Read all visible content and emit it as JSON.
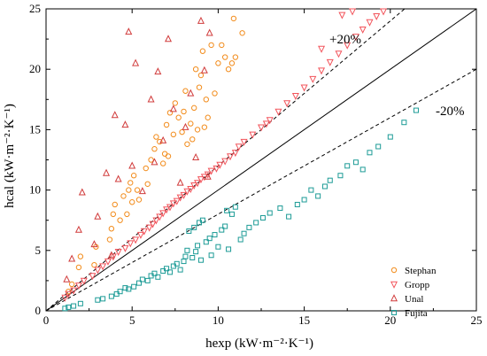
{
  "chart_data": {
    "type": "scatter",
    "title": "",
    "xlabel": "hexp (kW·m⁻²·K⁻¹)",
    "ylabel": "hcal (kW·m⁻²·K⁻¹)",
    "xlim": [
      0,
      25
    ],
    "ylim": [
      0,
      25
    ],
    "xticks": [
      "0",
      "5",
      "10",
      "15",
      "20",
      "25"
    ],
    "yticks": [
      "0",
      "5",
      "10",
      "15",
      "20",
      "25"
    ],
    "grid": false,
    "legend_position": "bottom-right",
    "reference_lines": [
      {
        "label": "",
        "slope": 1.0,
        "style": "solid"
      },
      {
        "label": "+20%",
        "slope": 1.2,
        "style": "dashed"
      },
      {
        "label": "-20%",
        "slope": 0.8,
        "style": "dashed"
      }
    ],
    "series": [
      {
        "name": "Stephan",
        "marker": "circle",
        "color": "#F28C1C",
        "points": [
          [
            1.3,
            1.6
          ],
          [
            1.5,
            2.2
          ],
          [
            1.9,
            3.6
          ],
          [
            2.0,
            4.5
          ],
          [
            2.8,
            3.8
          ],
          [
            2.9,
            5.3
          ],
          [
            3.7,
            5.9
          ],
          [
            3.8,
            6.8
          ],
          [
            3.9,
            8.0
          ],
          [
            4.0,
            8.8
          ],
          [
            4.3,
            7.5
          ],
          [
            4.5,
            9.5
          ],
          [
            4.7,
            8.0
          ],
          [
            4.8,
            10.0
          ],
          [
            4.9,
            10.6
          ],
          [
            5.0,
            9.0
          ],
          [
            5.1,
            11.2
          ],
          [
            5.3,
            10.0
          ],
          [
            5.4,
            9.2
          ],
          [
            5.8,
            11.8
          ],
          [
            5.9,
            10.5
          ],
          [
            6.1,
            12.5
          ],
          [
            6.3,
            13.4
          ],
          [
            6.4,
            14.4
          ],
          [
            6.6,
            14.0
          ],
          [
            6.8,
            12.2
          ],
          [
            6.9,
            13.0
          ],
          [
            7.0,
            15.4
          ],
          [
            7.1,
            12.8
          ],
          [
            7.2,
            16.4
          ],
          [
            7.4,
            14.6
          ],
          [
            7.5,
            17.2
          ],
          [
            7.7,
            16.0
          ],
          [
            7.9,
            14.8
          ],
          [
            8.0,
            16.5
          ],
          [
            8.1,
            18.2
          ],
          [
            8.2,
            13.8
          ],
          [
            8.4,
            15.5
          ],
          [
            8.5,
            14.2
          ],
          [
            8.6,
            16.8
          ],
          [
            8.7,
            20.0
          ],
          [
            8.8,
            15.0
          ],
          [
            8.9,
            18.5
          ],
          [
            9.0,
            19.5
          ],
          [
            9.1,
            21.5
          ],
          [
            9.2,
            15.2
          ],
          [
            9.3,
            17.5
          ],
          [
            9.4,
            16.0
          ],
          [
            9.6,
            22.0
          ],
          [
            9.8,
            18.0
          ],
          [
            10.0,
            20.5
          ],
          [
            10.2,
            22.0
          ],
          [
            10.4,
            21.0
          ],
          [
            10.6,
            20.0
          ],
          [
            10.8,
            20.5
          ],
          [
            10.9,
            24.2
          ],
          [
            11.0,
            21.0
          ],
          [
            11.4,
            23.0
          ]
        ]
      },
      {
        "name": "Gropp",
        "marker": "triangle-down",
        "color": "#F2545B",
        "points": [
          [
            1.1,
            1.1
          ],
          [
            1.3,
            1.4
          ],
          [
            1.6,
            1.7
          ],
          [
            1.9,
            2.1
          ],
          [
            2.2,
            2.5
          ],
          [
            2.7,
            2.9
          ],
          [
            3.0,
            3.4
          ],
          [
            3.3,
            3.7
          ],
          [
            3.6,
            4.1
          ],
          [
            3.9,
            4.5
          ],
          [
            4.2,
            4.9
          ],
          [
            4.6,
            5.2
          ],
          [
            4.9,
            5.6
          ],
          [
            5.2,
            5.9
          ],
          [
            5.5,
            6.3
          ],
          [
            5.7,
            6.6
          ],
          [
            6.0,
            6.9
          ],
          [
            6.2,
            7.2
          ],
          [
            6.4,
            7.5
          ],
          [
            6.6,
            7.8
          ],
          [
            6.8,
            8.1
          ],
          [
            7.0,
            8.4
          ],
          [
            7.2,
            8.6
          ],
          [
            7.4,
            8.9
          ],
          [
            7.6,
            9.1
          ],
          [
            7.8,
            9.4
          ],
          [
            8.0,
            9.6
          ],
          [
            8.2,
            9.9
          ],
          [
            8.4,
            10.1
          ],
          [
            8.6,
            10.4
          ],
          [
            8.8,
            10.6
          ],
          [
            9.0,
            10.9
          ],
          [
            9.2,
            11.1
          ],
          [
            9.4,
            11.3
          ],
          [
            9.6,
            11.6
          ],
          [
            9.9,
            11.8
          ],
          [
            10.1,
            12.1
          ],
          [
            10.4,
            12.4
          ],
          [
            10.7,
            12.8
          ],
          [
            11.0,
            13.1
          ],
          [
            11.5,
            14.0
          ],
          [
            12.0,
            14.6
          ],
          [
            12.5,
            15.2
          ],
          [
            13.0,
            15.8
          ],
          [
            13.5,
            16.5
          ],
          [
            14.0,
            17.2
          ],
          [
            14.5,
            17.8
          ],
          [
            15.0,
            18.5
          ],
          [
            15.5,
            19.2
          ],
          [
            16.0,
            19.9
          ],
          [
            16.5,
            20.6
          ],
          [
            17.0,
            21.3
          ],
          [
            17.5,
            22.0
          ],
          [
            18.0,
            22.7
          ],
          [
            18.4,
            23.3
          ],
          [
            18.8,
            23.9
          ],
          [
            19.2,
            24.4
          ],
          [
            19.6,
            24.8
          ],
          [
            17.2,
            24.5
          ],
          [
            17.8,
            24.8
          ],
          [
            16.0,
            21.7
          ],
          [
            12.8,
            15.5
          ],
          [
            11.2,
            13.6
          ]
        ]
      },
      {
        "name": "Unal",
        "marker": "triangle-up",
        "color": "#D13C3C",
        "points": [
          [
            1.2,
            2.6
          ],
          [
            1.5,
            4.3
          ],
          [
            1.9,
            6.7
          ],
          [
            2.1,
            9.8
          ],
          [
            2.8,
            5.5
          ],
          [
            3.0,
            7.8
          ],
          [
            3.5,
            11.4
          ],
          [
            3.8,
            4.6
          ],
          [
            4.0,
            16.2
          ],
          [
            4.2,
            10.9
          ],
          [
            4.6,
            15.4
          ],
          [
            4.8,
            23.1
          ],
          [
            5.0,
            12.0
          ],
          [
            5.2,
            20.5
          ],
          [
            5.6,
            9.9
          ],
          [
            6.1,
            17.5
          ],
          [
            6.3,
            12.3
          ],
          [
            6.5,
            19.8
          ],
          [
            6.8,
            14.1
          ],
          [
            7.1,
            22.5
          ],
          [
            7.4,
            16.7
          ],
          [
            7.8,
            10.6
          ],
          [
            8.1,
            15.2
          ],
          [
            8.4,
            18.0
          ],
          [
            8.7,
            12.7
          ],
          [
            9.0,
            24.0
          ],
          [
            9.2,
            19.9
          ],
          [
            9.4,
            11.1
          ],
          [
            9.5,
            23.0
          ]
        ]
      },
      {
        "name": "Fujita",
        "marker": "square",
        "color": "#1C9B96",
        "points": [
          [
            1.1,
            0.2
          ],
          [
            1.3,
            0.3
          ],
          [
            1.6,
            0.4
          ],
          [
            2.0,
            0.6
          ],
          [
            3.0,
            0.9
          ],
          [
            3.3,
            1.0
          ],
          [
            3.8,
            1.2
          ],
          [
            4.1,
            1.4
          ],
          [
            4.3,
            1.6
          ],
          [
            4.6,
            1.9
          ],
          [
            4.8,
            1.8
          ],
          [
            5.1,
            2.0
          ],
          [
            5.4,
            2.3
          ],
          [
            5.6,
            2.6
          ],
          [
            5.9,
            2.5
          ],
          [
            6.1,
            2.9
          ],
          [
            6.3,
            3.1
          ],
          [
            6.5,
            2.8
          ],
          [
            6.8,
            3.3
          ],
          [
            7.0,
            3.5
          ],
          [
            7.2,
            3.2
          ],
          [
            7.4,
            3.7
          ],
          [
            7.6,
            3.9
          ],
          [
            7.8,
            3.4
          ],
          [
            8.0,
            4.1
          ],
          [
            8.1,
            4.5
          ],
          [
            8.2,
            5.0
          ],
          [
            8.3,
            6.6
          ],
          [
            8.5,
            4.4
          ],
          [
            8.6,
            6.9
          ],
          [
            8.7,
            4.9
          ],
          [
            8.8,
            5.4
          ],
          [
            8.9,
            7.3
          ],
          [
            9.0,
            4.2
          ],
          [
            9.1,
            7.5
          ],
          [
            9.3,
            5.7
          ],
          [
            9.5,
            6.0
          ],
          [
            9.6,
            4.6
          ],
          [
            9.8,
            6.3
          ],
          [
            10.0,
            5.3
          ],
          [
            10.2,
            6.7
          ],
          [
            10.4,
            7.0
          ],
          [
            10.5,
            8.3
          ],
          [
            10.6,
            5.1
          ],
          [
            10.8,
            8.0
          ],
          [
            11.0,
            8.6
          ],
          [
            11.3,
            5.9
          ],
          [
            11.5,
            6.4
          ],
          [
            11.8,
            6.9
          ],
          [
            12.2,
            7.3
          ],
          [
            12.6,
            7.7
          ],
          [
            13.0,
            8.1
          ],
          [
            13.6,
            8.5
          ],
          [
            14.1,
            7.8
          ],
          [
            14.6,
            8.8
          ],
          [
            15.0,
            9.2
          ],
          [
            15.4,
            10.0
          ],
          [
            15.8,
            9.5
          ],
          [
            16.2,
            10.3
          ],
          [
            16.5,
            10.8
          ],
          [
            17.1,
            11.2
          ],
          [
            17.5,
            12.0
          ],
          [
            18.0,
            12.3
          ],
          [
            18.4,
            11.7
          ],
          [
            18.8,
            13.1
          ],
          [
            19.3,
            13.6
          ],
          [
            20.0,
            14.4
          ],
          [
            20.8,
            15.6
          ],
          [
            21.5,
            16.6
          ]
        ]
      }
    ]
  }
}
